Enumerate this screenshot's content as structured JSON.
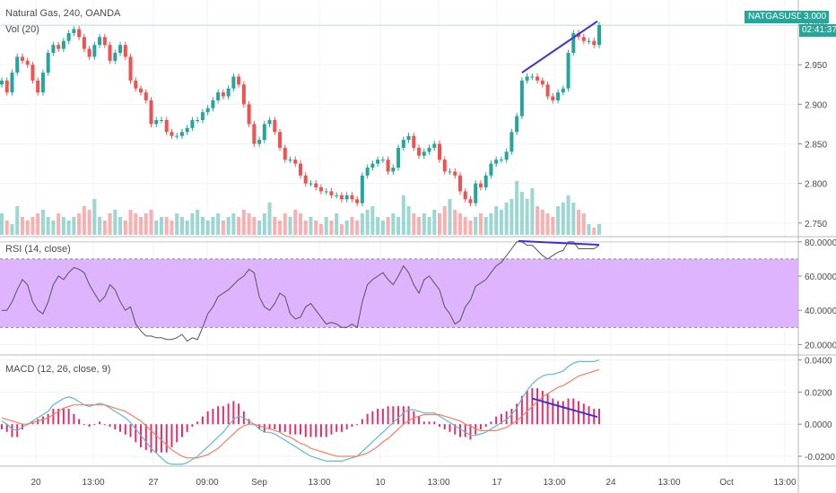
{
  "header": {
    "symbol_title": "Natural Gas, 240, OANDA",
    "volume_label": "Vol (20)"
  },
  "price_tag": {
    "symbol": "NATGASUSD",
    "price": "3.000",
    "countdown": "02:41:37"
  },
  "colors": {
    "up": "#26a69a",
    "down": "#ef5350",
    "rsi_band": "#d9a7ff",
    "macd_line": "#5fb8d6",
    "signal_line": "#f08060",
    "histogram": "#e0306a",
    "trend_line": "#3a32d6"
  },
  "chart_data": [
    {
      "type": "candlestick",
      "title": "Natural Gas, 240, OANDA",
      "ylim": [
        2.735,
        3.025
      ],
      "y_ticks": [
        "3.000",
        "2.950",
        "2.900",
        "2.850",
        "2.800",
        "2.750"
      ],
      "y_tick_values": [
        3.0,
        2.95,
        2.9,
        2.85,
        2.8,
        2.75
      ],
      "x_ticks": [
        "20",
        "13:00",
        "27",
        "09:00",
        "Sep",
        "13:00",
        "10",
        "13:00",
        "17",
        "13:00",
        "24",
        "13:00",
        "Oct",
        "13:00"
      ],
      "closes": [
        2.93,
        2.915,
        2.94,
        2.96,
        2.955,
        2.95,
        2.93,
        2.915,
        2.94,
        2.965,
        2.975,
        2.97,
        2.98,
        2.99,
        2.995,
        2.985,
        2.97,
        2.96,
        2.975,
        2.985,
        2.975,
        2.955,
        2.965,
        2.975,
        2.96,
        2.93,
        2.92,
        2.915,
        2.905,
        2.875,
        2.88,
        2.88,
        2.865,
        2.86,
        2.86,
        2.865,
        2.87,
        2.88,
        2.88,
        2.89,
        2.895,
        2.905,
        2.915,
        2.91,
        2.92,
        2.935,
        2.925,
        2.9,
        2.875,
        2.85,
        2.855,
        2.875,
        2.88,
        2.865,
        2.845,
        2.83,
        2.83,
        2.825,
        2.81,
        2.8,
        2.8,
        2.795,
        2.79,
        2.79,
        2.785,
        2.785,
        2.78,
        2.785,
        2.78,
        2.775,
        2.81,
        2.82,
        2.825,
        2.83,
        2.83,
        2.815,
        2.82,
        2.845,
        2.855,
        2.86,
        2.845,
        2.835,
        2.84,
        2.845,
        2.85,
        2.83,
        2.815,
        2.815,
        2.81,
        2.79,
        2.78,
        2.775,
        2.8,
        2.795,
        2.81,
        2.825,
        2.83,
        2.83,
        2.84,
        2.865,
        2.885,
        2.93,
        2.935,
        2.935,
        2.93,
        2.925,
        2.91,
        2.905,
        2.915,
        2.92,
        2.965,
        2.99,
        2.985,
        2.98,
        2.98,
        2.975,
        3.0
      ],
      "volume": [
        0.6,
        0.4,
        0.3,
        0.8,
        0.5,
        0.4,
        0.5,
        0.6,
        0.7,
        0.5,
        0.4,
        0.6,
        0.5,
        0.4,
        0.5,
        0.6,
        0.8,
        0.7,
        1.0,
        0.5,
        0.4,
        0.6,
        0.7,
        0.5,
        0.4,
        0.7,
        0.6,
        0.5,
        0.6,
        0.7,
        0.4,
        0.5,
        0.5,
        0.4,
        0.6,
        0.5,
        0.4,
        0.6,
        0.7,
        0.5,
        0.4,
        0.5,
        0.6,
        0.4,
        0.5,
        0.6,
        0.5,
        0.7,
        0.6,
        0.5,
        0.4,
        0.6,
        0.9,
        0.5,
        0.4,
        0.6,
        0.5,
        0.7,
        0.6,
        0.4,
        0.5,
        0.4,
        0.3,
        0.5,
        0.4,
        0.6,
        0.3,
        0.4,
        0.5,
        0.4,
        0.6,
        0.7,
        0.8,
        0.5,
        0.4,
        0.5,
        0.6,
        0.5,
        1.1,
        0.8,
        0.6,
        0.5,
        0.6,
        0.5,
        0.7,
        0.6,
        0.8,
        1.0,
        0.7,
        0.6,
        0.5,
        0.4,
        0.5,
        0.6,
        0.5,
        0.6,
        0.8,
        0.7,
        0.9,
        1.0,
        1.5,
        1.2,
        1.0,
        1.3,
        0.8,
        0.7,
        0.6,
        0.5,
        0.8,
        0.9,
        1.1,
        0.9,
        0.7,
        0.6,
        0.3,
        0.2,
        0.3
      ],
      "annotation": "upward trend line from 2.94 to 3.00 near last candles"
    },
    {
      "type": "line",
      "title": "RSI (14, close)",
      "ylim": [
        15,
        82
      ],
      "y_ticks": [
        "80.0000",
        "60.0000",
        "40.0000",
        "20.0000"
      ],
      "y_tick_values": [
        80,
        60,
        40,
        20
      ],
      "band": [
        30,
        70
      ],
      "values": [
        40,
        40,
        45,
        52,
        58,
        55,
        45,
        40,
        38,
        45,
        55,
        60,
        58,
        62,
        65,
        64,
        62,
        55,
        50,
        45,
        48,
        55,
        52,
        45,
        40,
        42,
        32,
        28,
        25,
        25,
        24,
        24,
        23,
        23,
        24,
        26,
        22,
        24,
        23,
        30,
        38,
        42,
        48,
        50,
        52,
        55,
        58,
        60,
        64,
        62,
        48,
        42,
        40,
        44,
        50,
        48,
        38,
        35,
        36,
        42,
        44,
        40,
        36,
        32,
        33,
        32,
        30,
        30,
        32,
        30,
        45,
        55,
        58,
        60,
        62,
        58,
        55,
        60,
        66,
        62,
        55,
        50,
        58,
        60,
        56,
        52,
        42,
        38,
        32,
        34,
        42,
        46,
        54,
        56,
        58,
        62,
        66,
        68,
        72,
        76,
        80,
        80,
        78,
        78,
        75,
        72,
        70,
        72,
        74,
        75,
        80,
        80,
        76,
        76,
        76,
        76,
        78
      ],
      "annotation": "falling trend line from 80.5 to 78.0"
    },
    {
      "type": "line",
      "title": "MACD (12, 26, close, 9)",
      "ylim": [
        -0.025,
        0.042
      ],
      "y_ticks": [
        "0.0400",
        "0.0200",
        "0.0000",
        "-0.0200"
      ],
      "y_tick_values": [
        0.04,
        0.02,
        0.0,
        -0.02
      ],
      "series": [
        {
          "name": "",
          "values": [
            0.002,
            0.0,
            -0.003,
            -0.004,
            -0.002,
            0.0,
            0.002,
            0.004,
            0.006,
            0.008,
            0.012,
            0.014,
            0.016,
            0.017,
            0.016,
            0.014,
            0.012,
            0.011,
            0.012,
            0.013,
            0.012,
            0.01,
            0.008,
            0.006,
            0.004,
            0.001,
            -0.003,
            -0.007,
            -0.011,
            -0.015,
            -0.018,
            -0.021,
            -0.024,
            -0.025,
            -0.025,
            -0.025,
            -0.024,
            -0.022,
            -0.02,
            -0.017,
            -0.014,
            -0.011,
            -0.008,
            -0.005,
            -0.001,
            0.003,
            0.005,
            0.004,
            0.002,
            0.0,
            -0.003,
            -0.005,
            -0.005,
            -0.006,
            -0.008,
            -0.01,
            -0.012,
            -0.014,
            -0.016,
            -0.018,
            -0.02,
            -0.021,
            -0.022,
            -0.023,
            -0.023,
            -0.023,
            -0.023,
            -0.022,
            -0.021,
            -0.02,
            -0.017,
            -0.014,
            -0.011,
            -0.008,
            -0.005,
            -0.002,
            0.001,
            0.004,
            0.007,
            0.009,
            0.009,
            0.008,
            0.007,
            0.007,
            0.007,
            0.005,
            0.003,
            0.001,
            -0.001,
            -0.003,
            -0.005,
            -0.007,
            -0.007,
            -0.006,
            -0.005,
            -0.003,
            -0.001,
            0.001,
            0.003,
            0.006,
            0.01,
            0.016,
            0.021,
            0.025,
            0.028,
            0.03,
            0.031,
            0.031,
            0.032,
            0.033,
            0.036,
            0.038,
            0.039,
            0.039,
            0.039,
            0.039,
            0.04
          ]
        },
        {
          "name": "",
          "values": [
            0.004,
            0.003,
            0.002,
            0.001,
            0.0,
            0.0,
            0.001,
            0.002,
            0.003,
            0.004,
            0.006,
            0.008,
            0.01,
            0.011,
            0.012,
            0.012,
            0.012,
            0.012,
            0.012,
            0.012,
            0.012,
            0.011,
            0.01,
            0.009,
            0.008,
            0.006,
            0.004,
            0.002,
            -0.001,
            -0.004,
            -0.007,
            -0.01,
            -0.013,
            -0.016,
            -0.018,
            -0.02,
            -0.021,
            -0.021,
            -0.021,
            -0.02,
            -0.019,
            -0.017,
            -0.015,
            -0.012,
            -0.009,
            -0.006,
            -0.003,
            -0.001,
            0.0,
            0.0,
            -0.001,
            -0.002,
            -0.003,
            -0.004,
            -0.005,
            -0.007,
            -0.008,
            -0.01,
            -0.012,
            -0.013,
            -0.015,
            -0.016,
            -0.017,
            -0.018,
            -0.019,
            -0.02,
            -0.02,
            -0.02,
            -0.02,
            -0.02,
            -0.019,
            -0.018,
            -0.016,
            -0.014,
            -0.011,
            -0.009,
            -0.006,
            -0.003,
            0.0,
            0.002,
            0.004,
            0.005,
            0.006,
            0.006,
            0.006,
            0.006,
            0.005,
            0.004,
            0.003,
            0.002,
            0.0,
            -0.001,
            -0.003,
            -0.004,
            -0.004,
            -0.004,
            -0.004,
            -0.003,
            -0.002,
            0.0,
            0.002,
            0.005,
            0.008,
            0.011,
            0.014,
            0.017,
            0.019,
            0.021,
            0.023,
            0.024,
            0.026,
            0.028,
            0.03,
            0.031,
            0.032,
            0.033,
            0.034
          ]
        }
      ],
      "annotation": "falling trend line over histogram peaks"
    }
  ]
}
